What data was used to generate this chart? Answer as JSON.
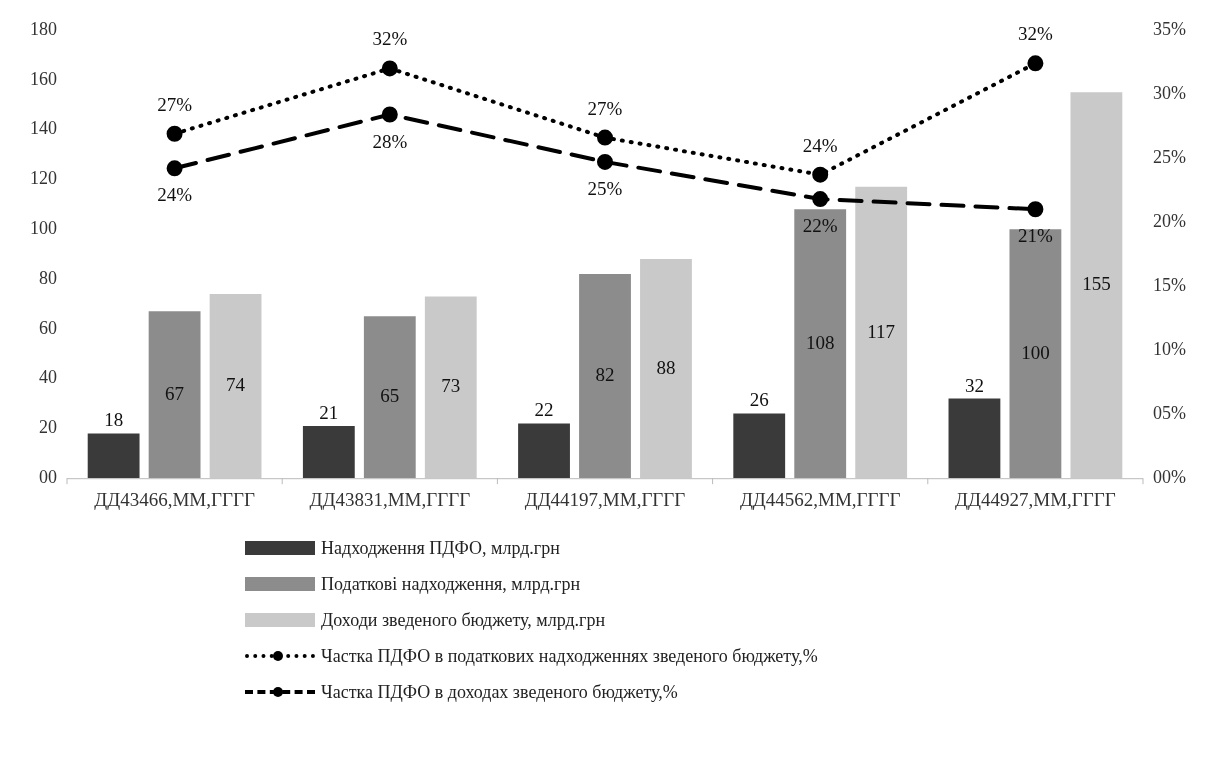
{
  "chart_data": {
    "type": "bar",
    "categories": [
      "ДД43466,ММ,ГГГГ",
      "ДД43831,ММ,ГГГГ",
      "ДД44197,ММ,ГГГГ",
      "ДД44562,ММ,ГГГГ",
      "ДД44927,ММ,ГГГГ"
    ],
    "series": [
      {
        "name": "Надходження ПДФО, млрд.грн",
        "color": "#3a3a3a",
        "values": [
          18,
          21,
          22,
          26,
          32
        ],
        "value_labels": [
          "18",
          "21",
          "22",
          "26",
          "32"
        ]
      },
      {
        "name": "Податкові надходження, млрд.грн",
        "color": "#8c8c8c",
        "values": [
          67,
          65,
          82,
          108,
          100
        ],
        "value_labels": [
          "67",
          "65",
          "82",
          "108",
          "100"
        ]
      },
      {
        "name": "Доходи зведеного бюджету, млрд.грн",
        "color": "#c9c9c9",
        "values": [
          74,
          73,
          88,
          117,
          155
        ],
        "value_labels": [
          "74",
          "73",
          "88",
          "117",
          "155"
        ]
      },
      {
        "name": "Частка ПДФО в податкових надходженнях зведеного бюджету,%",
        "type": "line",
        "axis": "y2",
        "color": "#000000",
        "line_style": "dotted",
        "marker": "circle",
        "values": [
          26.9,
          32.0,
          26.6,
          23.7,
          32.4
        ],
        "value_labels": [
          "27%",
          "32%",
          "27%",
          "24%",
          "32%"
        ]
      },
      {
        "name": "Частка ПДФО в доходах зведеного бюджету,%",
        "type": "line",
        "axis": "y2",
        "color": "#000000",
        "line_style": "dashed",
        "marker": "circle",
        "values": [
          24.2,
          28.4,
          24.7,
          21.8,
          21.0
        ],
        "value_labels": [
          "24%",
          "28%",
          "25%",
          "22%",
          "21%"
        ]
      }
    ],
    "ylim": [
      0,
      180
    ],
    "yticks": [
      {
        "value": 0,
        "label": "00"
      },
      20,
      40,
      60,
      80,
      100,
      120,
      140,
      160,
      180
    ],
    "y2lim": [
      0,
      35
    ],
    "y2ticks": [
      {
        "value": 0,
        "label": "00%"
      },
      {
        "value": 5,
        "label": "05%"
      },
      {
        "value": 10,
        "label": "10%"
      },
      {
        "value": 15,
        "label": "15%"
      },
      {
        "value": 20,
        "label": "20%"
      },
      {
        "value": 25,
        "label": "25%"
      },
      {
        "value": 30,
        "label": "30%"
      },
      {
        "value": 35,
        "label": "35%"
      }
    ],
    "legend": "bottom"
  }
}
